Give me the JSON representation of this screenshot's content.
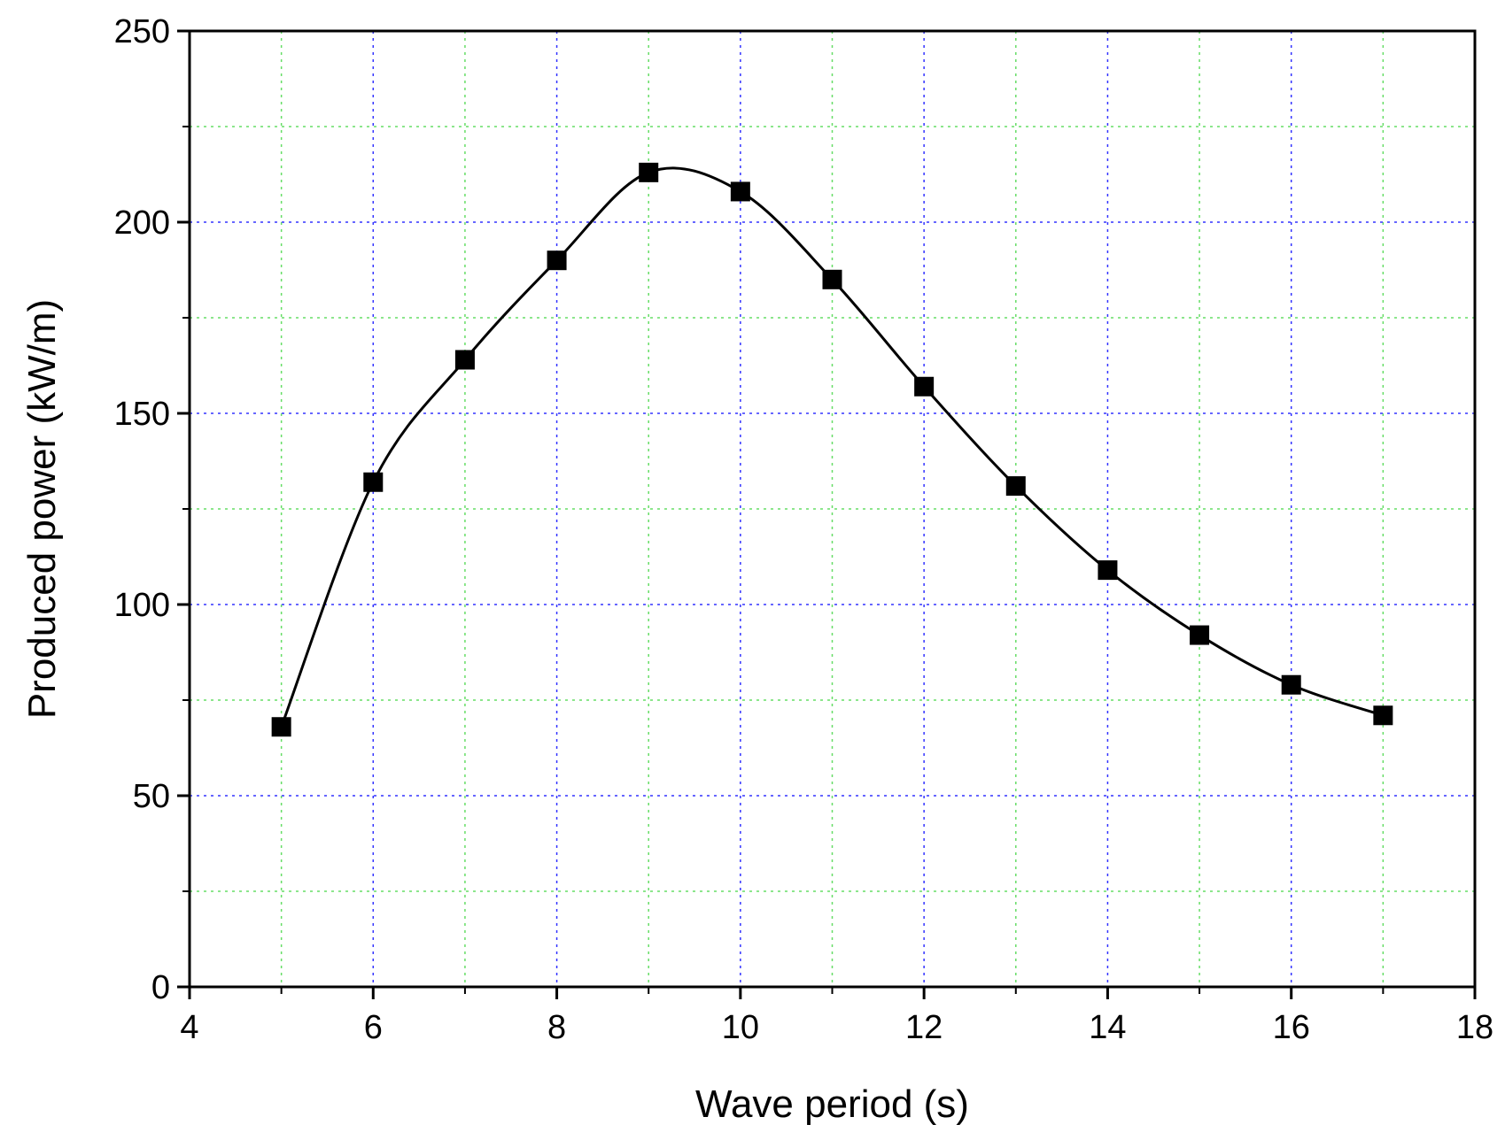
{
  "chart_data": {
    "type": "line",
    "title": "",
    "xlabel": "Wave period (s)",
    "ylabel": "Produced power (kW/m)",
    "xlim": [
      4,
      18
    ],
    "ylim": [
      0,
      250
    ],
    "x_ticks": [
      4,
      6,
      8,
      10,
      12,
      14,
      16,
      18
    ],
    "y_ticks": [
      0,
      50,
      100,
      150,
      200,
      250
    ],
    "x_tick_labels": [
      "4",
      "6",
      "8",
      "10",
      "12",
      "14",
      "16",
      "18"
    ],
    "y_tick_labels": [
      "0",
      "50",
      "100",
      "150",
      "200",
      "250"
    ],
    "grid": true,
    "grid_major_color": "#3333ff",
    "grid_minor_color": "#66dd66",
    "legend": "none",
    "series": [
      {
        "line_color": "#000000",
        "marker": "square",
        "smooth": true,
        "x": [
          5,
          6,
          7,
          8,
          9,
          10,
          11,
          12,
          13,
          14,
          15,
          16,
          17
        ],
        "y": [
          68,
          132,
          164,
          190,
          213,
          208,
          185,
          157,
          131,
          109,
          92,
          79,
          71
        ]
      }
    ]
  }
}
